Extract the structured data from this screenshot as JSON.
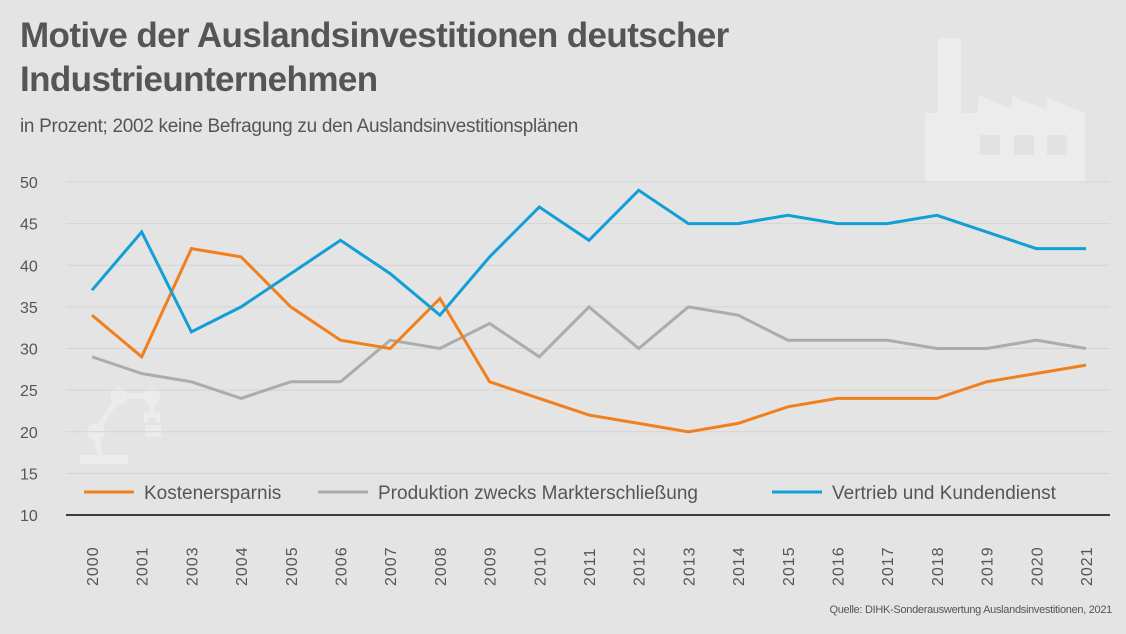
{
  "header": {
    "title_line1": "Motive der Auslandsinvestitionen deutscher",
    "title_line2": "Industrieunternehmen",
    "subtitle": "in Prozent; 2002 keine Befragung zu den Auslandsinvestitionsplänen"
  },
  "footer": {
    "source": "Quelle: DIHK-Sonderauswertung Auslandsinvestitionen, 2021"
  },
  "decorations": {
    "top_right_icon": "factory-icon",
    "bottom_left_icon": "robot-arm-icon"
  },
  "chart_data": {
    "type": "line",
    "title": "Motive der Auslandsinvestitionen deutscher Industrieunternehmen",
    "subtitle": "in Prozent; 2002 keine Befragung zu den Auslandsinvestitionsplänen",
    "xlabel": "",
    "ylabel": "",
    "categories": [
      "2000",
      "2001",
      "2003",
      "2004",
      "2005",
      "2006",
      "2007",
      "2008",
      "2009",
      "2010",
      "2011",
      "2012",
      "2013",
      "2014",
      "2015",
      "2016",
      "2017",
      "2018",
      "2019",
      "2020",
      "2021"
    ],
    "ylim": [
      10,
      50
    ],
    "yticks": [
      10,
      15,
      20,
      25,
      30,
      35,
      40,
      45,
      50
    ],
    "grid": true,
    "legend_position": "bottom-inside",
    "series": [
      {
        "name": "Kostenersparnis",
        "color": "#f0801e",
        "values": [
          34,
          29,
          42,
          41,
          35,
          31,
          30,
          36,
          26,
          24,
          22,
          21,
          20,
          21,
          23,
          24,
          24,
          24,
          26,
          27,
          28
        ]
      },
      {
        "name": "Produktion zwecks Markterschließung",
        "color": "#acacac",
        "values": [
          29,
          27,
          26,
          24,
          26,
          26,
          31,
          30,
          33,
          29,
          35,
          30,
          35,
          34,
          31,
          31,
          31,
          30,
          30,
          31,
          30
        ]
      },
      {
        "name": "Vertrieb und Kundendienst",
        "color": "#129fd6",
        "values": [
          37,
          44,
          32,
          35,
          39,
          43,
          39,
          34,
          41,
          47,
          43,
          49,
          45,
          45,
          46,
          45,
          45,
          46,
          44,
          42,
          42
        ]
      }
    ],
    "source": "Quelle: DIHK-Sonderauswertung Auslandsinvestitionen, 2021"
  }
}
